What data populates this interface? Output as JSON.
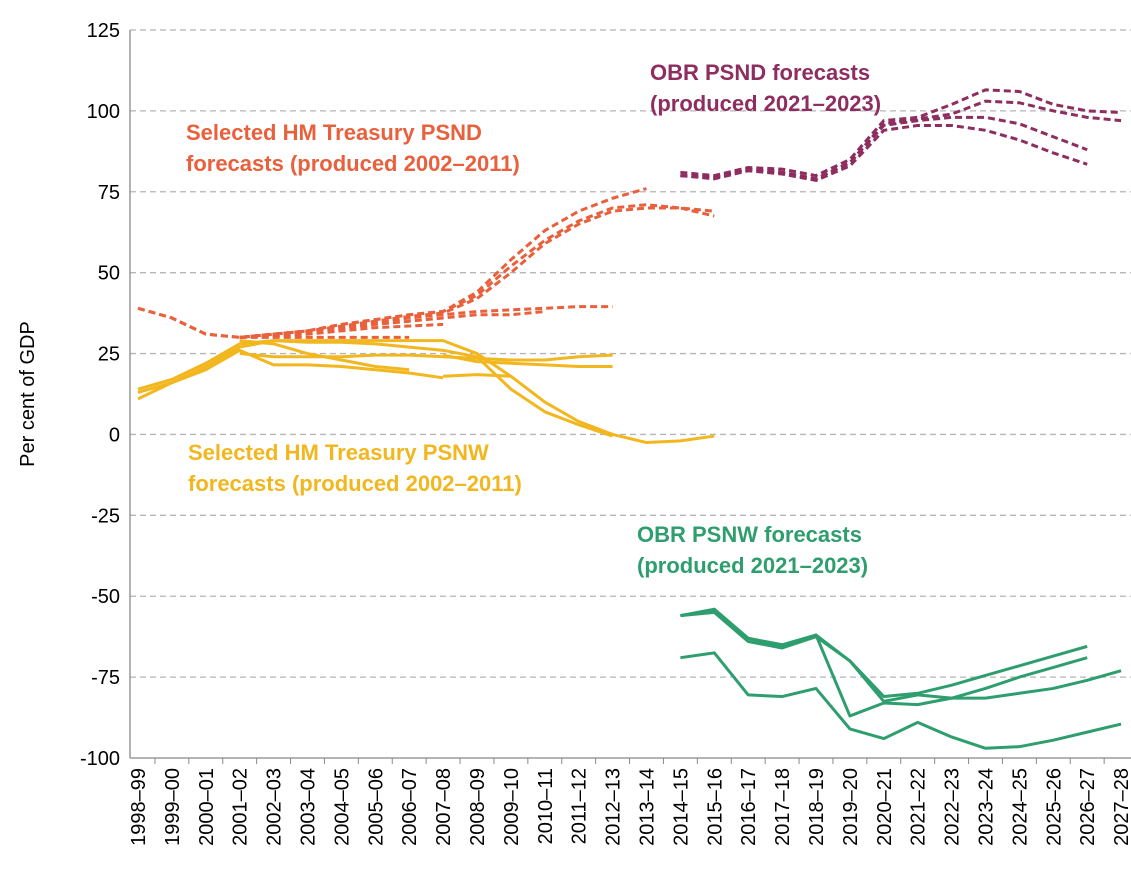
{
  "chart_data": {
    "type": "line",
    "y_label": "Per cent of GDP",
    "categories": [
      "1998–99",
      "1999–00",
      "2000–01",
      "2001–02",
      "2002–03",
      "2003–04",
      "2004–05",
      "2005–06",
      "2006–07",
      "2007–08",
      "2008–09",
      "2009–10",
      "2010–11",
      "2011–12",
      "2012–13",
      "2013–14",
      "2014–15",
      "2015–16",
      "2016–17",
      "2017–18",
      "2018–19",
      "2019–20",
      "2020–21",
      "2021–22",
      "2022–23",
      "2023–24",
      "2024–25",
      "2025–26",
      "2026–27",
      "2027–28"
    ],
    "ylim": [
      -100,
      125
    ],
    "yticks": [
      -100,
      -75,
      -50,
      -25,
      0,
      25,
      50,
      75,
      100,
      125
    ],
    "grid": true,
    "annotations": [
      {
        "lines": [
          "Selected HM Treasury PSND",
          "forecasts (produced 2002–2011)"
        ],
        "color": "#e8603c"
      },
      {
        "lines": [
          "OBR PSND forecasts",
          "(produced 2021–2023)"
        ],
        "color": "#8e2d5f"
      },
      {
        "lines": [
          "Selected HM Treasury PSNW",
          "forecasts (produced 2002–2011)"
        ],
        "color": "#f2b71e"
      },
      {
        "lines": [
          "OBR PSNW forecasts",
          "(produced 2021–2023)"
        ],
        "color": "#2f9e6e"
      }
    ],
    "series": [
      {
        "color": "#e8603c",
        "dashed": true,
        "values": [
          39,
          36,
          31,
          30,
          31,
          32,
          34,
          35.5,
          37,
          38,
          44,
          54,
          63,
          69,
          73,
          76,
          null,
          null,
          null,
          null,
          null,
          null,
          null,
          null,
          null,
          null,
          null,
          null,
          null,
          null
        ]
      },
      {
        "color": "#e8603c",
        "dashed": true,
        "values": [
          39,
          36,
          31,
          30,
          31,
          32,
          34,
          35.5,
          37,
          38,
          43,
          52,
          60,
          66,
          70,
          71,
          70,
          69,
          null,
          null,
          null,
          null,
          null,
          null,
          null,
          null,
          null,
          null,
          null,
          null
        ]
      },
      {
        "color": "#e8603c",
        "dashed": true,
        "values": [
          null,
          null,
          null,
          30,
          31,
          32,
          33.5,
          35,
          36.5,
          37.5,
          42,
          50,
          59,
          65,
          69,
          70,
          70,
          67.5,
          null,
          null,
          null,
          null,
          null,
          null,
          null,
          null,
          null,
          null,
          null,
          null
        ]
      },
      {
        "color": "#e8603c",
        "dashed": true,
        "values": [
          null,
          null,
          null,
          30,
          31,
          32,
          33,
          34.5,
          36,
          37,
          38,
          38.5,
          39,
          39.5,
          39.5,
          null,
          null,
          null,
          null,
          null,
          null,
          null,
          null,
          null,
          null,
          null,
          null,
          null,
          null,
          null
        ]
      },
      {
        "color": "#e8603c",
        "dashed": true,
        "values": [
          null,
          null,
          null,
          30,
          30.5,
          31.5,
          32.5,
          34,
          35,
          36,
          37,
          37,
          38,
          null,
          null,
          null,
          null,
          null,
          null,
          null,
          null,
          null,
          null,
          null,
          null,
          null,
          null,
          null,
          null,
          null
        ]
      },
      {
        "color": "#e8603c",
        "dashed": true,
        "values": [
          null,
          null,
          null,
          30,
          30.5,
          31,
          32,
          33,
          33.5,
          34,
          null,
          null,
          null,
          null,
          null,
          null,
          null,
          null,
          null,
          null,
          null,
          null,
          null,
          null,
          null,
          null,
          null,
          null,
          null,
          null
        ]
      },
      {
        "color": "#e8603c",
        "dashed": true,
        "values": [
          null,
          null,
          null,
          30,
          30,
          30,
          30,
          30,
          30,
          null,
          null,
          null,
          null,
          null,
          null,
          null,
          null,
          null,
          null,
          null,
          null,
          null,
          null,
          null,
          null,
          null,
          null,
          null,
          null,
          null
        ]
      },
      {
        "color": "#f2b71e",
        "values": [
          14,
          17,
          22,
          28,
          29,
          29,
          29,
          29,
          29,
          29,
          25,
          18,
          10,
          4,
          0,
          -2.5,
          -2,
          -0.5,
          null,
          null,
          null,
          null,
          null,
          null,
          null,
          null,
          null,
          null,
          null,
          null
        ]
      },
      {
        "color": "#f2b71e",
        "values": [
          11,
          16,
          21,
          27,
          29,
          28.5,
          28.5,
          28,
          27,
          26,
          24,
          14,
          7,
          3,
          -0.5,
          null,
          null,
          null,
          null,
          null,
          null,
          null,
          null,
          null,
          null,
          null,
          null,
          null,
          null,
          null
        ]
      },
      {
        "color": "#f2b71e",
        "values": [
          13,
          16,
          20,
          26,
          21.5,
          21.5,
          21,
          20,
          19,
          17.5,
          null,
          null,
          null,
          null,
          null,
          null,
          null,
          null,
          null,
          null,
          null,
          null,
          null,
          null,
          null,
          null,
          null,
          null,
          null,
          null
        ]
      },
      {
        "color": "#f2b71e",
        "values": [
          null,
          null,
          null,
          29,
          28,
          25,
          23,
          21,
          20,
          null,
          null,
          null,
          null,
          null,
          null,
          null,
          null,
          null,
          null,
          null,
          null,
          null,
          null,
          null,
          null,
          null,
          null,
          null,
          null,
          null
        ]
      },
      {
        "color": "#f2b71e",
        "values": [
          null,
          null,
          null,
          25,
          24,
          24,
          24,
          24.5,
          24.5,
          24,
          23.5,
          23,
          23,
          24,
          24.5,
          null,
          null,
          null,
          null,
          null,
          null,
          null,
          null,
          null,
          null,
          null,
          null,
          null,
          null,
          null
        ]
      },
      {
        "color": "#f2b71e",
        "values": [
          null,
          null,
          null,
          null,
          null,
          null,
          null,
          null,
          null,
          24.5,
          22.5,
          22,
          21.5,
          21,
          21,
          null,
          null,
          null,
          null,
          null,
          null,
          null,
          null,
          null,
          null,
          null,
          null,
          null,
          null,
          null
        ]
      },
      {
        "color": "#f2b71e",
        "values": [
          null,
          null,
          null,
          null,
          null,
          null,
          null,
          null,
          null,
          18,
          18.5,
          18,
          null,
          null,
          null,
          null,
          null,
          null,
          null,
          null,
          null,
          null,
          null,
          null,
          null,
          null,
          null,
          null,
          null,
          null
        ]
      },
      {
        "color": "#8e2d5f",
        "dashed": true,
        "values": [
          null,
          null,
          null,
          null,
          null,
          null,
          null,
          null,
          null,
          null,
          null,
          null,
          null,
          null,
          null,
          null,
          81,
          80,
          82.5,
          82,
          80,
          85,
          97,
          98,
          102,
          106.5,
          106,
          102,
          100,
          99.5
        ]
      },
      {
        "color": "#8e2d5f",
        "dashed": true,
        "values": [
          null,
          null,
          null,
          null,
          null,
          null,
          null,
          null,
          null,
          null,
          null,
          null,
          null,
          null,
          null,
          null,
          80,
          79.5,
          82,
          81,
          79,
          84,
          96,
          97.5,
          99,
          103,
          102.5,
          100,
          98,
          97
        ]
      },
      {
        "color": "#8e2d5f",
        "dashed": true,
        "values": [
          null,
          null,
          null,
          null,
          null,
          null,
          null,
          null,
          null,
          null,
          null,
          null,
          null,
          null,
          null,
          null,
          80,
          79.5,
          82,
          81,
          79,
          84,
          95.5,
          97,
          98,
          98,
          96,
          92,
          88,
          null
        ]
      },
      {
        "color": "#8e2d5f",
        "dashed": true,
        "values": [
          null,
          null,
          null,
          null,
          null,
          null,
          null,
          null,
          null,
          null,
          null,
          null,
          null,
          null,
          null,
          null,
          80,
          79,
          81.5,
          80.5,
          78.5,
          83,
          94,
          95.5,
          95.5,
          94,
          91,
          87,
          83.5,
          null
        ]
      },
      {
        "color": "#2f9e6e",
        "values": [
          null,
          null,
          null,
          null,
          null,
          null,
          null,
          null,
          null,
          null,
          null,
          null,
          null,
          null,
          null,
          null,
          -56,
          -54.5,
          -63,
          -65.5,
          -62,
          -70,
          -81,
          -80,
          -77.5,
          -74.5,
          -71.5,
          -68.5,
          -65.5,
          null
        ]
      },
      {
        "color": "#2f9e6e",
        "values": [
          null,
          null,
          null,
          null,
          null,
          null,
          null,
          null,
          null,
          null,
          null,
          null,
          null,
          null,
          null,
          null,
          -56,
          -55,
          -64,
          -66,
          -62.5,
          -70,
          -82.5,
          -80.5,
          -81.5,
          -78.5,
          -75,
          -72,
          -69,
          null
        ]
      },
      {
        "color": "#2f9e6e",
        "values": [
          null,
          null,
          null,
          null,
          null,
          null,
          null,
          null,
          null,
          null,
          null,
          null,
          null,
          null,
          null,
          null,
          -69,
          -67.5,
          -80.5,
          -81,
          -78.5,
          -91,
          -94,
          -89,
          -93.5,
          -97,
          -96.5,
          -94.5,
          -92,
          -89.5
        ]
      },
      {
        "color": "#2f9e6e",
        "values": [
          null,
          null,
          null,
          null,
          null,
          null,
          null,
          null,
          null,
          null,
          null,
          null,
          null,
          null,
          null,
          null,
          -56,
          -54,
          -63,
          -65,
          -62,
          -87,
          -83,
          -83.5,
          -81.5,
          -81.5,
          -80,
          -78.5,
          -76,
          -73
        ]
      }
    ]
  }
}
